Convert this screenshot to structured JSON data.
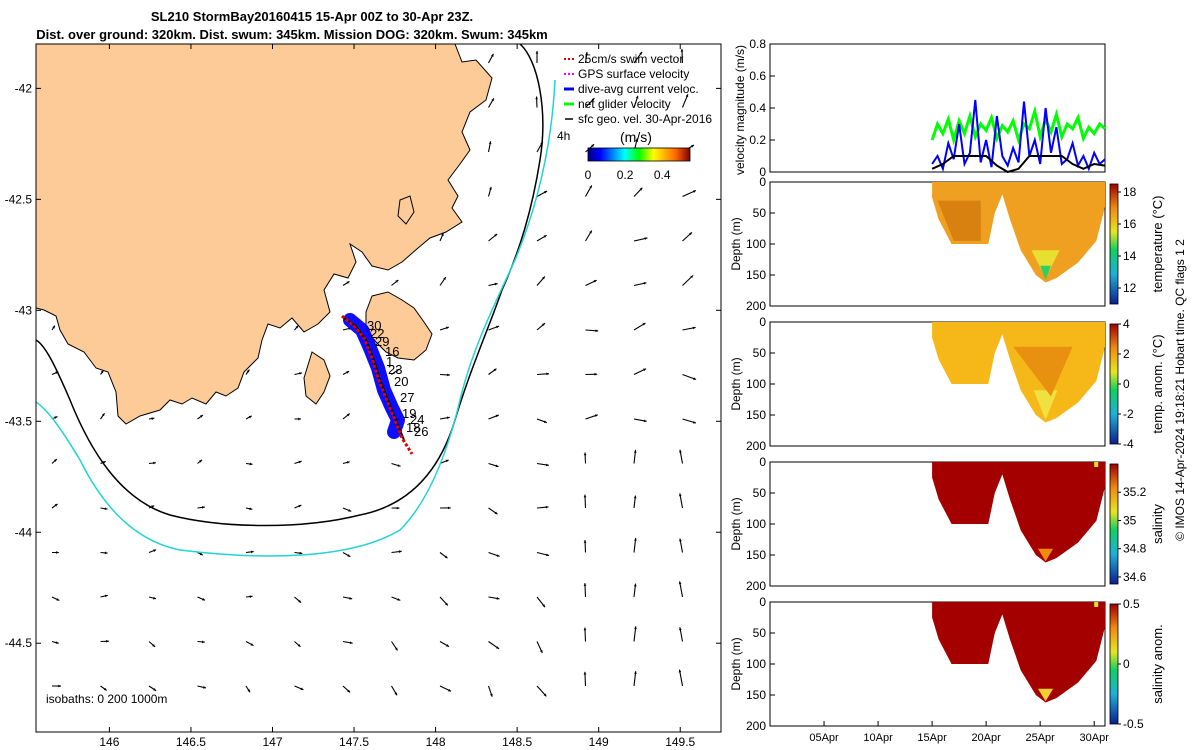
{
  "header": {
    "title_line1": "SL210 StormBay20160415 15-Apr 00Z to 30-Apr 23Z.",
    "title_line2": "Dist. over ground: 320km. Dist. swum: 345km. Mission DOG: 320km. Swum: 345km"
  },
  "footer_text": "© IMOS 14-Apr-2024 19:18:21 Hobart time. QC flags 1  2",
  "colors": {
    "land": "#fccb97",
    "isobath_200": "#000000",
    "isobath_1000": "#22d4d4",
    "track_red": "#e00000",
    "dive_blue": "#0000ff",
    "net_green": "#00ff00",
    "gps_magenta": "#ff00ff"
  },
  "chart_data": [
    {
      "type": "map",
      "xticks": [
        "146",
        "146.5",
        "147",
        "147.5",
        "148",
        "148.5",
        "149",
        "149.5"
      ],
      "yticks": [
        "-42",
        "-42.5",
        "-43",
        "-43.5",
        "-44",
        "-44.5"
      ],
      "xlim": [
        145.55,
        149.75
      ],
      "ylim": [
        -44.9,
        -41.8
      ],
      "legend": {
        "items": [
          {
            "label": "25cm/s swim vector",
            "color": "#e00000",
            "style": "dashed"
          },
          {
            "label": "GPS surface velocity",
            "color": "#ff00ff",
            "style": "dashed"
          },
          {
            "label": "dive-avg current veloc.",
            "color": "#0000ff",
            "style": "solid"
          },
          {
            "label": "net glider velocity",
            "color": "#00ff00",
            "style": "solid"
          },
          {
            "label": "sfc geo. vel. 30-Apr-2016",
            "color": "#000000",
            "style": "arrow"
          }
        ],
        "extra_label": "4h"
      },
      "colorbar": {
        "label": "(m/s)",
        "ticks": [
          "0",
          "0.2",
          "0.4"
        ],
        "range": [
          0,
          0.55
        ]
      },
      "isobath_label": "isobaths: 0   200  1000m",
      "track_labels": [
        "30",
        "22",
        "29",
        "16",
        "1",
        "23",
        "20",
        "27",
        "19",
        "24",
        "18",
        "26"
      ]
    },
    {
      "type": "line",
      "ylabel": "velocity magnitude (m/s)",
      "ylim": [
        0,
        0.8
      ],
      "yticks": [
        "0",
        "0.2",
        "0.4",
        "0.6",
        "0.8"
      ],
      "x_range_days": [
        0,
        31
      ],
      "series": [
        {
          "color": "#00ff00",
          "x": [
            15.0,
            15.5,
            16.0,
            16.5,
            17.0,
            17.5,
            18.0,
            18.5,
            19.0,
            19.5,
            20.0,
            20.5,
            21.0,
            21.5,
            22.0,
            22.5,
            23.0,
            23.5,
            24.0,
            24.5,
            25.0,
            25.5,
            26.0,
            26.5,
            27.0,
            27.5,
            28.0,
            28.5,
            29.0,
            29.5,
            30.0,
            30.5,
            31.0
          ],
          "values": [
            0.2,
            0.3,
            0.24,
            0.33,
            0.2,
            0.32,
            0.24,
            0.35,
            0.22,
            0.3,
            0.26,
            0.34,
            0.21,
            0.29,
            0.25,
            0.32,
            0.2,
            0.3,
            0.27,
            0.38,
            0.22,
            0.33,
            0.25,
            0.36,
            0.22,
            0.3,
            0.27,
            0.34,
            0.21,
            0.28,
            0.24,
            0.3,
            0.27
          ]
        },
        {
          "color": "#0000ff",
          "x": [
            15.0,
            15.5,
            16.0,
            16.5,
            17.0,
            17.5,
            18.0,
            18.5,
            19.0,
            19.5,
            20.0,
            20.5,
            21.0,
            21.5,
            22.0,
            22.5,
            23.0,
            23.5,
            24.0,
            24.5,
            25.0,
            25.5,
            26.0,
            26.5,
            27.0,
            27.5,
            28.0,
            28.5,
            29.0,
            29.5,
            30.0,
            30.5,
            31.0
          ],
          "values": [
            0.05,
            0.1,
            0.02,
            0.18,
            0.08,
            0.3,
            0.05,
            0.12,
            0.45,
            0.06,
            0.2,
            0.03,
            0.35,
            0.1,
            0.04,
            0.15,
            0.06,
            0.44,
            0.1,
            0.2,
            0.05,
            0.4,
            0.12,
            0.28,
            0.05,
            0.08,
            0.18,
            0.04,
            0.1,
            0.02,
            0.12,
            0.05,
            0.08
          ]
        },
        {
          "color": "#000000",
          "x": [
            15.0,
            16.0,
            17.0,
            18.0,
            19.0,
            20.0,
            21.0,
            22.0,
            23.0,
            24.0,
            25.0,
            26.0,
            27.0,
            28.0,
            29.0,
            30.0,
            31.0
          ],
          "values": [
            0.02,
            0.05,
            0.1,
            0.1,
            0.1,
            0.1,
            0.04,
            0.0,
            0.02,
            0.1,
            0.1,
            0.1,
            0.1,
            0.05,
            0.02,
            0.05,
            0.04
          ]
        }
      ]
    },
    {
      "type": "heatmap",
      "ylabel": "Depth (m)",
      "colorbar_label": "temperature (°C)",
      "colorbar_ticks": [
        "12",
        "14",
        "16",
        "18"
      ],
      "clim": [
        11,
        18.5
      ],
      "ylim": [
        0,
        200
      ],
      "yticks": [
        "0",
        "50",
        "100",
        "150",
        "200"
      ]
    },
    {
      "type": "heatmap",
      "ylabel": "Depth (m)",
      "colorbar_label": "temp. anom. (°C)",
      "colorbar_ticks": [
        "-4",
        "-2",
        "0",
        "2",
        "4"
      ],
      "clim": [
        -4,
        4
      ],
      "ylim": [
        0,
        200
      ],
      "yticks": [
        "0",
        "50",
        "100",
        "150",
        "200"
      ]
    },
    {
      "type": "heatmap",
      "ylabel": "Depth (m)",
      "colorbar_label": "salinity",
      "colorbar_ticks": [
        "34.6",
        "34.8",
        "35",
        "35.2"
      ],
      "clim": [
        34.55,
        35.4
      ],
      "ylim": [
        0,
        200
      ],
      "yticks": [
        "0",
        "50",
        "100",
        "150",
        "200"
      ]
    },
    {
      "type": "heatmap",
      "ylabel": "Depth (m)",
      "colorbar_label": "salinity anom.",
      "colorbar_ticks": [
        "-0.5",
        "0",
        "0.5"
      ],
      "clim": [
        -0.5,
        0.5
      ],
      "ylim": [
        0,
        200
      ],
      "yticks": [
        "0",
        "50",
        "100",
        "150",
        "200"
      ],
      "xticks": [
        "05Apr",
        "10Apr",
        "15Apr",
        "20Apr",
        "25Apr",
        "30Apr"
      ],
      "xtick_days": [
        5,
        10,
        15,
        20,
        25,
        30
      ]
    }
  ]
}
